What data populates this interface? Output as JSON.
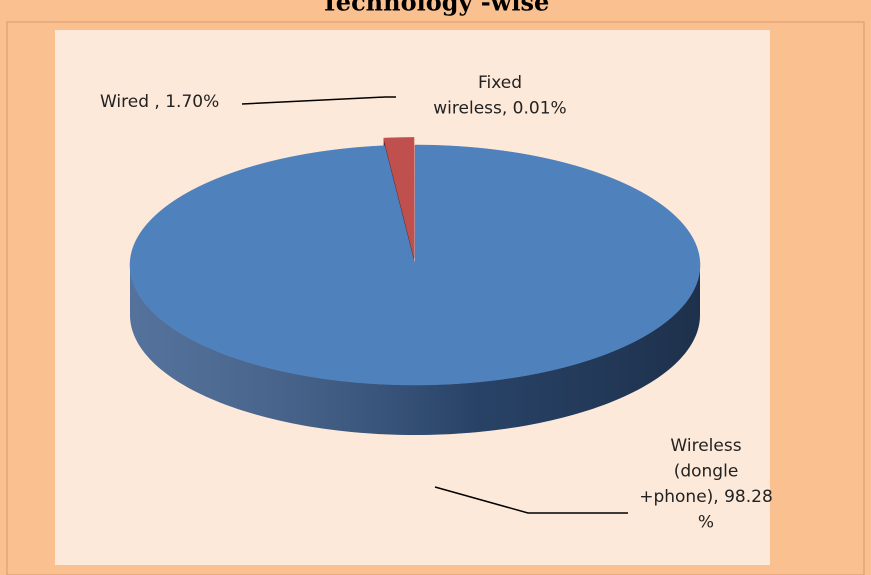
{
  "chart_data": {
    "type": "pie",
    "title": "Technology -wise",
    "values": [
      0.01,
      98.28,
      1.7
    ],
    "value_labels": [
      [
        "Fixed",
        "wireless, 0.01%"
      ],
      [
        "Wireless",
        "(dongle",
        "+phone), 98.28",
        "%"
      ],
      [
        "Wired , 1.70%"
      ]
    ],
    "colors": [
      "#c0504d",
      "#4f81bd",
      "#c0504d"
    ],
    "side_colors": [
      "#8c2d2b",
      "#36598a",
      "#8c2d2b"
    ],
    "exploded": [
      false,
      false,
      true
    ]
  }
}
